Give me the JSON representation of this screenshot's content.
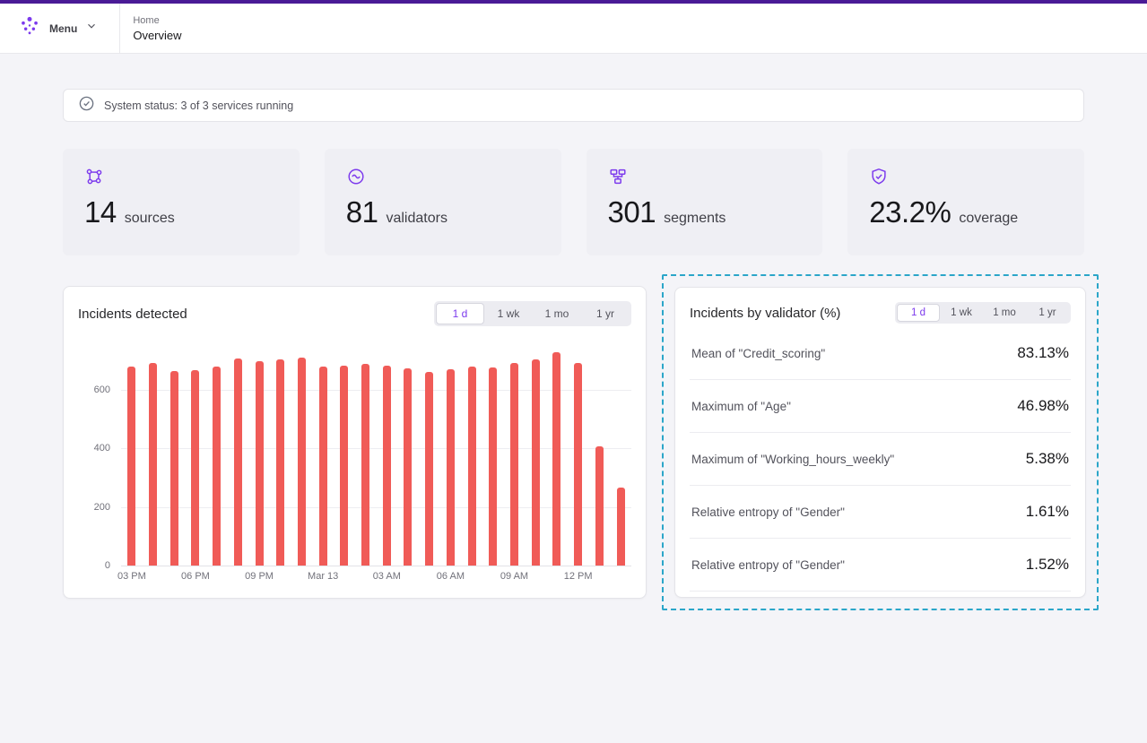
{
  "header": {
    "menu_label": "Menu",
    "breadcrumb": {
      "parent": "Home",
      "current": "Overview"
    }
  },
  "status_banner": {
    "text": "System status: 3 of 3 services running"
  },
  "stats": [
    {
      "value": "14",
      "label": "sources",
      "icon": "sources-icon"
    },
    {
      "value": "81",
      "label": "validators",
      "icon": "validators-icon"
    },
    {
      "value": "301",
      "label": "segments",
      "icon": "segments-icon"
    },
    {
      "value": "23.2%",
      "label": "coverage",
      "icon": "coverage-icon"
    }
  ],
  "time_ranges": [
    "1 d",
    "1 wk",
    "1 mo",
    "1 yr"
  ],
  "incidents_panel": {
    "title": "Incidents detected",
    "selected_range": "1 d"
  },
  "validators_panel": {
    "title": "Incidents by validator (%)",
    "selected_range": "1 d",
    "rows": [
      {
        "label": "Mean of \"Credit_scoring\"",
        "value": "83.13%"
      },
      {
        "label": "Maximum of \"Age\"",
        "value": "46.98%"
      },
      {
        "label": "Maximum of \"Working_hours_weekly\"",
        "value": "5.38%"
      },
      {
        "label": "Relative entropy of \"Gender\"",
        "value": "1.61%"
      },
      {
        "label": "Relative entropy of \"Gender\"",
        "value": "1.52%"
      }
    ]
  },
  "chart_data": {
    "type": "bar",
    "title": "Incidents detected",
    "x": [
      "03 PM",
      "",
      "",
      "06 PM",
      "",
      "",
      "09 PM",
      "",
      "",
      "Mar 13",
      "",
      "",
      "03 AM",
      "",
      "",
      "06 AM",
      "",
      "",
      "09 AM",
      "",
      "",
      "12 PM",
      "",
      ""
    ],
    "values": [
      680,
      692,
      663,
      668,
      681,
      706,
      699,
      704,
      711,
      681,
      684,
      690,
      683,
      675,
      661,
      670,
      679,
      677,
      691,
      704,
      728,
      691,
      408,
      268
    ],
    "ylim": [
      0,
      750
    ],
    "yticks": [
      0,
      200,
      400,
      600
    ],
    "ylabel": "",
    "xlabel": "",
    "grid": "horizontal",
    "legend": "none",
    "bar_color": "#f05b57"
  },
  "colors": {
    "accent_purple": "#7c3aed",
    "top_bar": "#4a1b96",
    "bar_red": "#f05b57",
    "selection_dashed": "#2ba6c9"
  }
}
